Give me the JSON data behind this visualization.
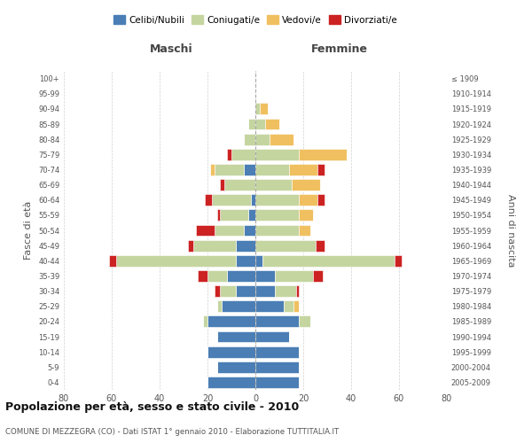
{
  "age_groups": [
    "0-4",
    "5-9",
    "10-14",
    "15-19",
    "20-24",
    "25-29",
    "30-34",
    "35-39",
    "40-44",
    "45-49",
    "50-54",
    "55-59",
    "60-64",
    "65-69",
    "70-74",
    "75-79",
    "80-84",
    "85-89",
    "90-94",
    "95-99",
    "100+"
  ],
  "birth_years": [
    "2005-2009",
    "2000-2004",
    "1995-1999",
    "1990-1994",
    "1985-1989",
    "1980-1984",
    "1975-1979",
    "1970-1974",
    "1965-1969",
    "1960-1964",
    "1955-1959",
    "1950-1954",
    "1945-1949",
    "1940-1944",
    "1935-1939",
    "1930-1934",
    "1925-1929",
    "1920-1924",
    "1915-1919",
    "1910-1914",
    "≤ 1909"
  ],
  "male": {
    "celibi": [
      20,
      16,
      20,
      16,
      20,
      14,
      8,
      12,
      8,
      8,
      5,
      3,
      2,
      0,
      5,
      0,
      0,
      0,
      0,
      0,
      0
    ],
    "coniugati": [
      0,
      0,
      0,
      0,
      2,
      2,
      7,
      8,
      50,
      18,
      12,
      12,
      16,
      13,
      12,
      10,
      5,
      3,
      0,
      0,
      0
    ],
    "vedovi": [
      0,
      0,
      0,
      0,
      0,
      0,
      0,
      0,
      0,
      0,
      0,
      0,
      0,
      0,
      2,
      0,
      0,
      0,
      0,
      0,
      0
    ],
    "divorziati": [
      0,
      0,
      0,
      0,
      0,
      0,
      2,
      4,
      3,
      2,
      8,
      1,
      3,
      2,
      0,
      2,
      0,
      0,
      0,
      0,
      0
    ]
  },
  "female": {
    "nubili": [
      18,
      18,
      18,
      14,
      18,
      12,
      8,
      8,
      3,
      0,
      0,
      0,
      0,
      0,
      0,
      0,
      0,
      0,
      0,
      0,
      0
    ],
    "coniugate": [
      0,
      0,
      0,
      0,
      5,
      4,
      9,
      16,
      55,
      25,
      18,
      18,
      18,
      15,
      14,
      18,
      6,
      4,
      2,
      0,
      0
    ],
    "vedove": [
      0,
      0,
      0,
      0,
      0,
      2,
      0,
      0,
      0,
      0,
      5,
      6,
      8,
      12,
      12,
      20,
      10,
      6,
      3,
      0,
      0
    ],
    "divorziate": [
      0,
      0,
      0,
      0,
      0,
      0,
      1,
      4,
      3,
      4,
      0,
      0,
      3,
      0,
      3,
      0,
      0,
      0,
      0,
      0,
      0
    ]
  },
  "colors": {
    "celibi_nubili": "#4a7eb5",
    "coniugati": "#c5d5a0",
    "vedovi": "#f0c060",
    "divorziati": "#cc2222"
  },
  "xlim": 80,
  "title": "Popolazione per età, sesso e stato civile - 2010",
  "subtitle": "COMUNE DI MEZZEGRA (CO) - Dati ISTAT 1° gennaio 2010 - Elaborazione TUTTITALIA.IT",
  "ylabel_left": "Fasce di età",
  "ylabel_right": "Anni di nascita",
  "xlabel_left": "Maschi",
  "xlabel_right": "Femmine"
}
